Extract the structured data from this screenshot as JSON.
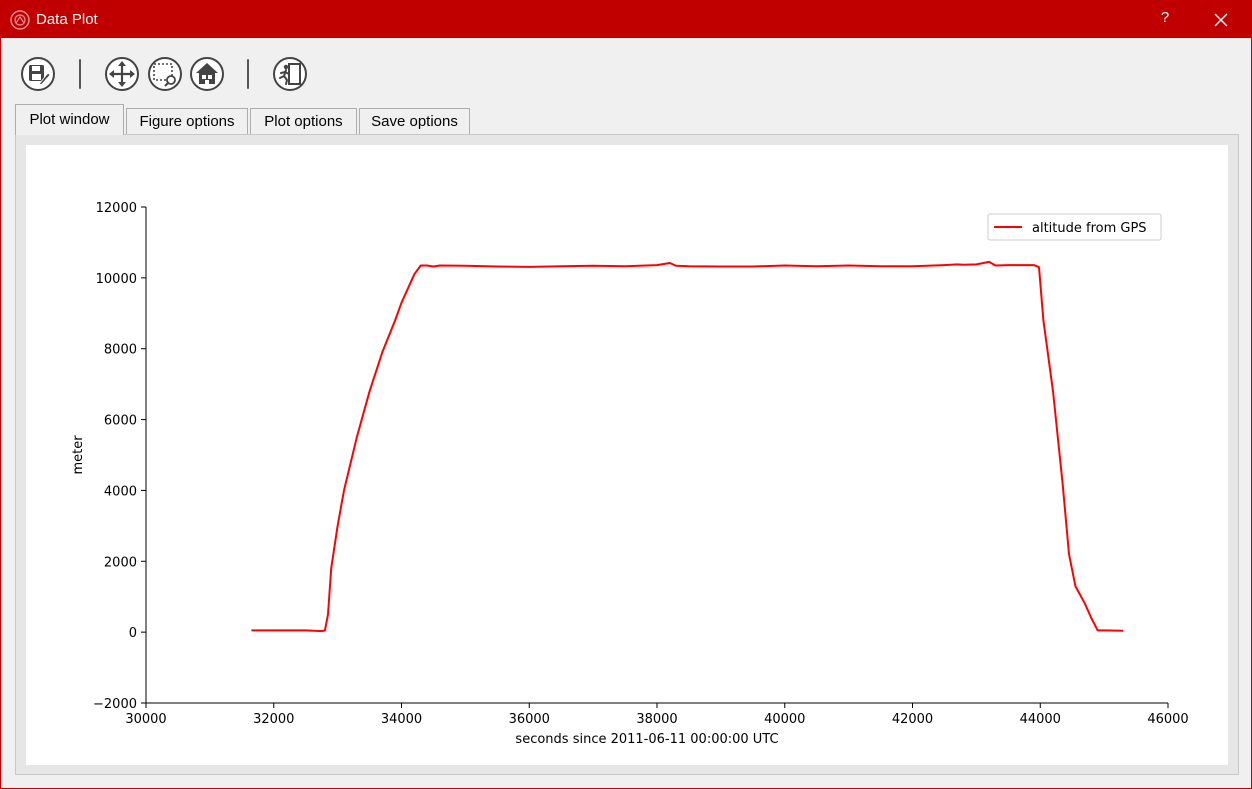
{
  "window": {
    "title": "Data Plot",
    "help_label": "?"
  },
  "toolbar": {
    "buttons": [
      {
        "name": "save-figure",
        "icon": "floppy-disk-pencil-icon"
      },
      {
        "name": "pan",
        "icon": "move-arrows-icon"
      },
      {
        "name": "zoom",
        "icon": "zoom-rectangle-icon"
      },
      {
        "name": "home",
        "icon": "home-icon"
      },
      {
        "name": "exit",
        "icon": "exit-door-icon"
      }
    ]
  },
  "tabs": [
    {
      "label": "Plot window",
      "active": true
    },
    {
      "label": "Figure options",
      "active": false
    },
    {
      "label": "Plot options",
      "active": false
    },
    {
      "label": "Save options",
      "active": false
    }
  ],
  "colors": {
    "titlebar": "#c00000",
    "series": "#ff0000"
  },
  "chart_data": {
    "type": "line",
    "title": "",
    "xlabel": "seconds since 2011-06-11 00:00:00 UTC",
    "ylabel": "meter",
    "xlim": [
      30000,
      46000
    ],
    "ylim": [
      -2000,
      12000
    ],
    "xticks": [
      30000,
      32000,
      34000,
      36000,
      38000,
      40000,
      42000,
      44000,
      46000
    ],
    "yticks": [
      -2000,
      0,
      2000,
      4000,
      6000,
      8000,
      10000,
      12000
    ],
    "xtick_labels": [
      "30000",
      "32000",
      "34000",
      "36000",
      "38000",
      "40000",
      "42000",
      "44000",
      "46000"
    ],
    "ytick_labels": [
      "−2000",
      "0",
      "2000",
      "4000",
      "6000",
      "8000",
      "10000",
      "12000"
    ],
    "legend": {
      "position": "top-right",
      "entries": [
        "altitude from GPS"
      ]
    },
    "series": [
      {
        "name": "altitude from GPS",
        "color": "#ff0000",
        "x": [
          31650,
          32000,
          32500,
          32750,
          32800,
          32850,
          32900,
          33000,
          33100,
          33300,
          33500,
          33700,
          33900,
          34000,
          34100,
          34200,
          34300,
          34400,
          34500,
          34600,
          35000,
          35500,
          36000,
          36500,
          37000,
          37500,
          38000,
          38200,
          38300,
          38500,
          39000,
          39500,
          40000,
          40500,
          41000,
          41500,
          42000,
          42500,
          42700,
          42800,
          43000,
          43200,
          43300,
          43500,
          43900,
          43980,
          44050,
          44200,
          44350,
          44450,
          44550,
          44700,
          44800,
          44900,
          45000,
          45300
        ],
        "y": [
          50,
          50,
          50,
          30,
          50,
          500,
          1800,
          3000,
          4000,
          5500,
          6800,
          7900,
          8800,
          9300,
          9700,
          10100,
          10350,
          10350,
          10320,
          10350,
          10340,
          10320,
          10310,
          10330,
          10340,
          10330,
          10360,
          10420,
          10340,
          10330,
          10320,
          10320,
          10350,
          10330,
          10350,
          10330,
          10330,
          10360,
          10380,
          10370,
          10380,
          10450,
          10350,
          10360,
          10360,
          10300,
          8800,
          6800,
          4200,
          2200,
          1300,
          800,
          400,
          50,
          50,
          40
        ]
      }
    ]
  }
}
